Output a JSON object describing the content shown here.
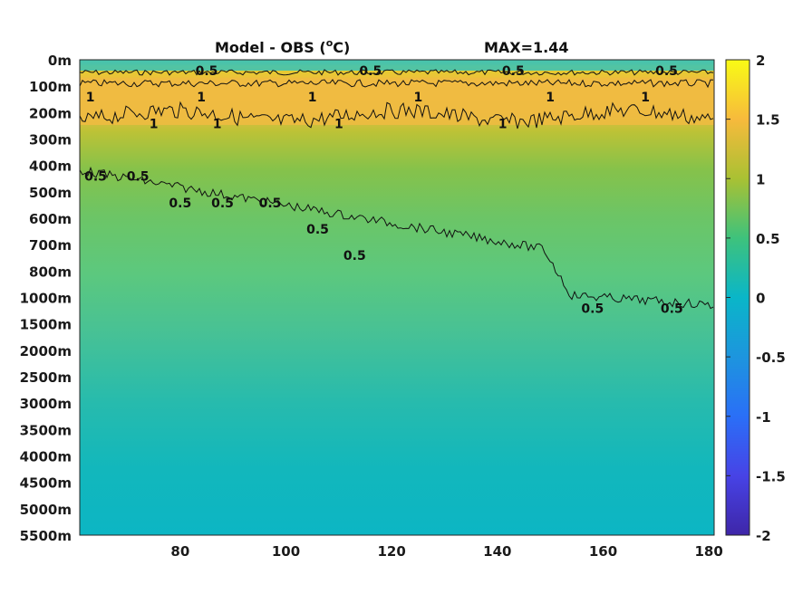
{
  "chart_data": {
    "type": "heatmap",
    "title": "Model - OBS (",
    "title_superscript": "o",
    "title_unit_suffix": "C)",
    "max_label": "MAX=1.44",
    "xlabel": "",
    "ylabel": "",
    "xlim": [
      61,
      181
    ],
    "x_ticks": [
      80,
      100,
      120,
      140,
      160,
      180
    ],
    "y_ticks": [
      "0m",
      "100m",
      "200m",
      "300m",
      "400m",
      "500m",
      "600m",
      "700m",
      "800m",
      "1000m",
      "1500m",
      "2000m",
      "2500m",
      "3000m",
      "3500m",
      "4000m",
      "4500m",
      "5000m",
      "5500m"
    ],
    "colorbar": {
      "range": [
        -2,
        2
      ],
      "ticks": [
        "2",
        "1.5",
        "1",
        "0.5",
        "0",
        "-0.5",
        "-1",
        "-1.5",
        "-2"
      ],
      "colormap": "parula"
    },
    "contour_levels": [
      0.5,
      1
    ],
    "contour_labels": [
      {
        "text": "0.5",
        "x": 85,
        "y": "0m"
      },
      {
        "text": "0.5",
        "x": 116,
        "y": "0m"
      },
      {
        "text": "0.5",
        "x": 143,
        "y": "0m"
      },
      {
        "text": "0.5",
        "x": 172,
        "y": "0m"
      },
      {
        "text": "1",
        "x": 63,
        "y": "100m"
      },
      {
        "text": "1",
        "x": 84,
        "y": "100m"
      },
      {
        "text": "1",
        "x": 105,
        "y": "100m"
      },
      {
        "text": "1",
        "x": 125,
        "y": "100m"
      },
      {
        "text": "1",
        "x": 150,
        "y": "100m"
      },
      {
        "text": "1",
        "x": 168,
        "y": "100m"
      },
      {
        "text": "1",
        "x": 75,
        "y": "200m"
      },
      {
        "text": "1",
        "x": 87,
        "y": "200m"
      },
      {
        "text": "1",
        "x": 110,
        "y": "200m"
      },
      {
        "text": "1",
        "x": 141,
        "y": "200m"
      },
      {
        "text": "0.5",
        "x": 64,
        "y": "400m"
      },
      {
        "text": "0.5",
        "x": 72,
        "y": "400m"
      },
      {
        "text": "0.5",
        "x": 80,
        "y": "500m"
      },
      {
        "text": "0.5",
        "x": 88,
        "y": "500m"
      },
      {
        "text": "0.5",
        "x": 97,
        "y": "500m"
      },
      {
        "text": "0.5",
        "x": 106,
        "y": "600m"
      },
      {
        "text": "0.5",
        "x": 113,
        "y": "700m"
      },
      {
        "text": "0.5",
        "x": 158,
        "y": "1000m"
      },
      {
        "text": "0.5",
        "x": 173,
        "y": "1000m"
      }
    ]
  }
}
